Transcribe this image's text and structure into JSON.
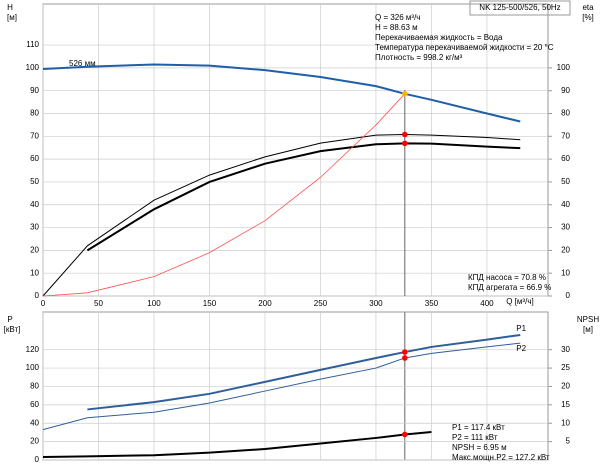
{
  "chart_data": [
    {
      "type": "line",
      "title": "NK 125-500/526, 50Hz",
      "ylabel": "H",
      "ylabel_unit": "[м]",
      "y2label": "eta",
      "y2label_unit": "[%]",
      "xlabel": "Q [м³/ч]",
      "annotations": [
        "Q = 326 м³/ч",
        "H = 88.63 м",
        "Перекачиваемая жидкость = Вода",
        "Температура перекачиваемой жидкости = 20 °C",
        "Плотность = 998.2 кг/м³"
      ],
      "efficiency_notes": [
        "КПД насоса = 70.8 %",
        "КПД агрегата = 66.9 %"
      ],
      "curve_label": "526 мм",
      "operating_q": 326,
      "x": [
        0,
        40,
        100,
        150,
        200,
        250,
        300,
        326,
        350,
        400,
        430
      ],
      "xlim": [
        0,
        455
      ],
      "xticks": [
        0,
        50,
        100,
        150,
        200,
        250,
        300,
        350,
        400
      ],
      "ylim": [
        0,
        128
      ],
      "yticks": [
        0,
        10,
        20,
        30,
        40,
        50,
        60,
        70,
        80,
        90,
        100,
        110
      ],
      "y2lim": [
        0,
        128
      ],
      "y2ticks": [
        0,
        10,
        20,
        30,
        40,
        50,
        60,
        70,
        80,
        90,
        100
      ],
      "grid": true,
      "series": [
        {
          "color": "#1f5ea8",
          "width": 2,
          "marker": "#f5b800",
          "values": [
            99.5,
            100.5,
            101.5,
            101,
            99,
            96,
            92,
            88.63,
            86,
            80,
            76.5
          ]
        },
        {
          "color": "#000000",
          "width": 1,
          "marker": "#ff0000",
          "axis": "y2",
          "values": [
            0,
            22,
            42,
            53,
            61,
            67,
            70.5,
            70.8,
            70.5,
            69.5,
            68.5
          ]
        },
        {
          "color": "#000000",
          "width": 2,
          "marker": "#ff0000",
          "axis": "y2",
          "values": [
            null,
            20,
            38,
            50,
            58,
            63.5,
            66.5,
            66.9,
            66.8,
            65.5,
            64.8
          ]
        },
        {
          "color": "#ff5050",
          "width": 0.8,
          "values": [
            0,
            1.4,
            8.5,
            19,
            33,
            52,
            75,
            88.63,
            null,
            null,
            null
          ]
        }
      ]
    },
    {
      "type": "line",
      "ylabel": "P",
      "ylabel_unit": "[кВт]",
      "y2label": "NPSH",
      "y2label_unit": "[м]",
      "annotations": [
        "P1 = 117.4 кВт",
        "P2 = 111 кВт",
        "NPSH = 6.95 м",
        "Макс.мощн.P2 = 127.2 кВт"
      ],
      "x": [
        0,
        40,
        100,
        150,
        200,
        250,
        300,
        326,
        350,
        400,
        430
      ],
      "xlim": [
        0,
        455
      ],
      "xticks": [
        0,
        50,
        100,
        150,
        200,
        250,
        300,
        350,
        400
      ],
      "ylim": [
        0,
        161
      ],
      "yticks": [
        0,
        20,
        40,
        60,
        80,
        100,
        120
      ],
      "y2lim": [
        0,
        40.25
      ],
      "y2ticks": [
        5,
        10,
        15,
        20,
        25,
        30
      ],
      "grid": true,
      "series": [
        {
          "name": "P1",
          "color": "#2f5f9a",
          "width": 2,
          "marker": "#ff0000",
          "values": [
            null,
            55,
            63,
            72,
            85,
            98,
            111,
            117.4,
            123,
            131,
            136
          ]
        },
        {
          "name": "P2",
          "color": "#2f5f9a",
          "width": 1,
          "marker": "#ff0000",
          "values": [
            33,
            46,
            52,
            62,
            75,
            88,
            100,
            111,
            116,
            123,
            127.2
          ]
        },
        {
          "color": "#000000",
          "width": 2,
          "marker": "#ff0000",
          "axis": "y2",
          "values": [
            0.8,
            1,
            1.3,
            2,
            3,
            4.5,
            6,
            6.95,
            7.6,
            null,
            null
          ]
        }
      ]
    }
  ]
}
